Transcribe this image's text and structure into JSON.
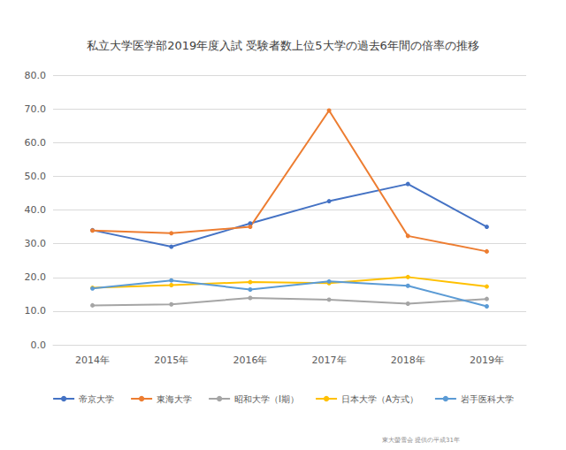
{
  "chart_data": {
    "type": "line",
    "title": "私立大学医学部2019年度入試 受験者数上位5大学の過去6年間の倍率の推移",
    "categories": [
      "2014年",
      "2015年",
      "2016年",
      "2017年",
      "2018年",
      "2019年"
    ],
    "series": [
      {
        "name": "帝京大学",
        "color": "#4472c4",
        "values": [
          34.0,
          29.1,
          36.0,
          42.6,
          47.7,
          35.0
        ]
      },
      {
        "name": "東海大学",
        "color": "#ed7d31",
        "values": [
          33.9,
          33.1,
          35.0,
          69.5,
          32.3,
          27.7
        ]
      },
      {
        "name": "昭和大学（I期）",
        "color": "#a5a5a5",
        "values": [
          11.7,
          12.0,
          13.9,
          13.4,
          12.2,
          13.6
        ]
      },
      {
        "name": "日本大学（A方式）",
        "color": "#ffc000",
        "values": [
          16.9,
          17.7,
          18.6,
          18.3,
          20.1,
          17.3
        ]
      },
      {
        "name": "岩手医科大学",
        "color": "#5b9bd5",
        "values": [
          16.7,
          19.1,
          16.4,
          18.8,
          17.5,
          11.4
        ]
      }
    ],
    "ylim": [
      0,
      80
    ],
    "yticks": [
      {
        "value": 0,
        "label": "0.0"
      },
      {
        "value": 10,
        "label": "10.0"
      },
      {
        "value": 20,
        "label": "20.0"
      },
      {
        "value": 30,
        "label": "30.0"
      },
      {
        "value": 40,
        "label": "40.0"
      },
      {
        "value": 50,
        "label": "50.0"
      },
      {
        "value": 60,
        "label": "60.0"
      },
      {
        "value": 70,
        "label": "70.0"
      },
      {
        "value": 80,
        "label": "80.0"
      }
    ],
    "grid": true,
    "legend": "bottom",
    "marker": "circle",
    "annotations": [
      "東大螢雪会 提供の平成31年"
    ]
  }
}
